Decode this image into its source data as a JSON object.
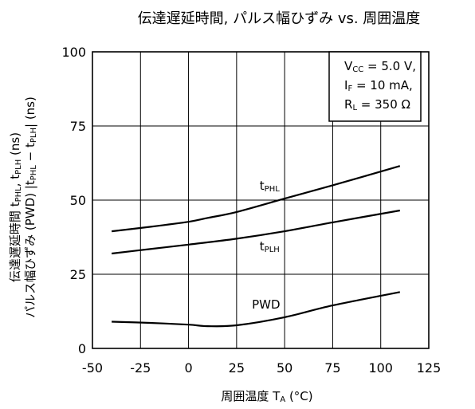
{
  "chart_data": {
    "type": "line",
    "title": "伝達遅延時間, パルス幅ひずみ vs. 周囲温度",
    "xlabel": {
      "main": "周囲温度",
      "symbol": "T",
      "sub": "A",
      "unit": "(°C)"
    },
    "ylabel": {
      "line1": "伝達遅延時間",
      "line2": "パルス幅ひずみ (PWD) |t",
      "line2_sub1": "PHL",
      "line2_mid": " − t",
      "line2_sub2": "PLH",
      "line2_end": "| (ns)",
      "line1_tail_t1": "t",
      "line1_tail_sub1": "PHL",
      "line1_tail_sep": ", t",
      "line1_tail_sub2": "PLH",
      "line1_tail_end": " (ns)"
    },
    "xlim": [
      -50,
      125
    ],
    "ylim": [
      0,
      100
    ],
    "x_ticks": [
      "-50",
      "-25",
      "0",
      "25",
      "50",
      "75",
      "100",
      "125"
    ],
    "y_ticks": [
      "0",
      "25",
      "50",
      "75",
      "100"
    ],
    "x_tick_values": [
      -50,
      -25,
      0,
      25,
      50,
      75,
      100,
      125
    ],
    "y_tick_values": [
      0,
      25,
      50,
      75,
      100
    ],
    "grid": true,
    "conditions": [
      {
        "main": "V",
        "sub": "CC",
        "rest": " = 5.0 V,"
      },
      {
        "main": "I",
        "sub": "F",
        "rest": " = 10 mA,"
      },
      {
        "main": "R",
        "sub": "L",
        "rest": " = 350 Ω"
      }
    ],
    "series": [
      {
        "name": "tPHL",
        "label_main": "t",
        "label_sub": "PHL",
        "label_at": [
          37,
          53.5
        ],
        "x": [
          -40,
          -20,
          0,
          10,
          25,
          50,
          75,
          110
        ],
        "y": [
          39.5,
          41,
          42.7,
          44,
          46,
          50.5,
          55,
          61.5
        ]
      },
      {
        "name": "tPLH",
        "label_main": "t",
        "label_sub": "PLH",
        "label_at": [
          37,
          33
        ],
        "x": [
          -40,
          -20,
          0,
          25,
          50,
          75,
          110
        ],
        "y": [
          32,
          33.5,
          35,
          37,
          39.5,
          42.5,
          46.5
        ]
      },
      {
        "name": "PWD",
        "label_main": "PWD",
        "label_sub": "",
        "label_at": [
          33,
          13.5
        ],
        "x": [
          -40,
          -20,
          0,
          10,
          25,
          50,
          75,
          110
        ],
        "y": [
          9,
          8.6,
          8,
          7.5,
          7.8,
          10.5,
          14.5,
          19
        ]
      }
    ]
  }
}
